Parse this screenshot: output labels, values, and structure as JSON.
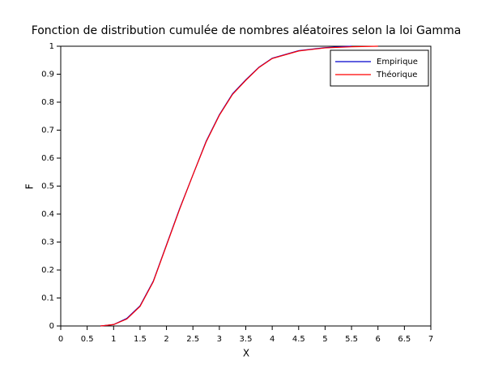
{
  "chart_data": {
    "type": "line",
    "title": "Fonction de distribution cumulée de nombres aléatoires selon la loi Gamma",
    "x_label": "X",
    "y_label": "F",
    "x": [
      0.75,
      1.0,
      1.25,
      1.5,
      1.75,
      2.0,
      2.25,
      2.5,
      2.75,
      3.0,
      3.25,
      3.5,
      3.75,
      4.0,
      4.5,
      5.0,
      5.5,
      6.0
    ],
    "series": [
      {
        "name": "Empirique",
        "color": "#0000cc",
        "values": [
          0,
          0.005,
          0.027,
          0.072,
          0.16,
          0.29,
          0.42,
          0.54,
          0.66,
          0.755,
          0.83,
          0.88,
          0.925,
          0.957,
          0.984,
          0.995,
          1.0,
          null
        ]
      },
      {
        "name": "Théorique",
        "color": "#ff0000",
        "values": [
          0,
          0.005,
          0.025,
          0.07,
          0.158,
          0.288,
          0.418,
          0.54,
          0.658,
          0.753,
          0.828,
          0.878,
          0.924,
          0.956,
          0.983,
          0.994,
          0.998,
          1.0
        ]
      }
    ],
    "xlim": [
      0,
      7
    ],
    "ylim": [
      0,
      1
    ],
    "xticks": [
      0,
      0.5,
      1,
      1.5,
      2,
      2.5,
      3,
      3.5,
      4,
      4.5,
      5,
      5.5,
      6,
      6.5,
      7
    ],
    "yticks": [
      0,
      0.1,
      0.2,
      0.3,
      0.4,
      0.5,
      0.6,
      0.7,
      0.8,
      0.9,
      1
    ],
    "legend": "upper right"
  }
}
